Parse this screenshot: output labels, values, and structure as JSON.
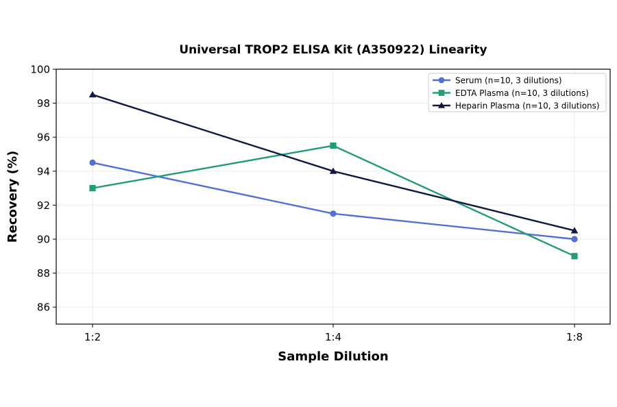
{
  "chart_data": {
    "type": "line",
    "title": "Universal TROP2 ELISA Kit (A350922) Linearity",
    "xlabel": "Sample Dilution",
    "ylabel": "Recovery (%)",
    "categories": [
      "1:2",
      "1:4",
      "1:8"
    ],
    "ylim": [
      85,
      100
    ],
    "yticks": [
      86,
      88,
      90,
      92,
      94,
      96,
      98,
      100
    ],
    "grid": true,
    "legend_position": "top-right",
    "series": [
      {
        "name": "Serum (n=10, 3 dilutions)",
        "values": [
          94.5,
          91.5,
          90.0
        ],
        "color": "#5470d6",
        "marker": "circle"
      },
      {
        "name": "EDTA Plasma (n=10, 3 dilutions)",
        "values": [
          93.0,
          95.5,
          89.0
        ],
        "color": "#239b77",
        "marker": "square"
      },
      {
        "name": "Heparin Plasma (n=10, 3 dilutions)",
        "values": [
          98.5,
          94.0,
          90.5
        ],
        "color": "#0d1a45",
        "marker": "triangle"
      }
    ]
  }
}
